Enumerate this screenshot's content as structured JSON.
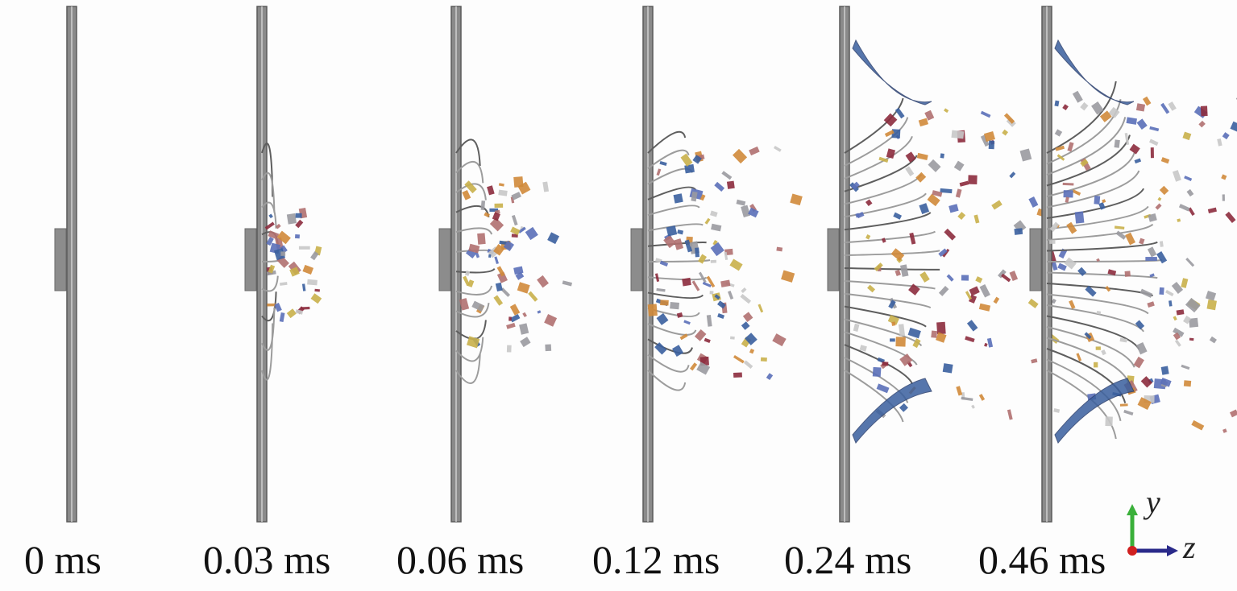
{
  "frames": [
    {
      "time_label": "0 ms"
    },
    {
      "time_label": "0.03 ms"
    },
    {
      "time_label": "0.06 ms"
    },
    {
      "time_label": "0.12 ms"
    },
    {
      "time_label": "0.24 ms"
    },
    {
      "time_label": "0.46 ms"
    }
  ],
  "axes": {
    "y_label": "y",
    "z_label": "z"
  },
  "colors": {
    "plate": "#8a8a8a",
    "plate_edge": "#5a5a5a",
    "fragments": [
      "#3a5f9e",
      "#8c2b3d",
      "#c9b04a",
      "#c8c8c8",
      "#5a6fb8",
      "#b07070",
      "#d08a3a",
      "#9a9aa0"
    ],
    "axis_y": "#3ab03a",
    "axis_z": "#2a2a8a",
    "axis_origin": "#d02020"
  }
}
